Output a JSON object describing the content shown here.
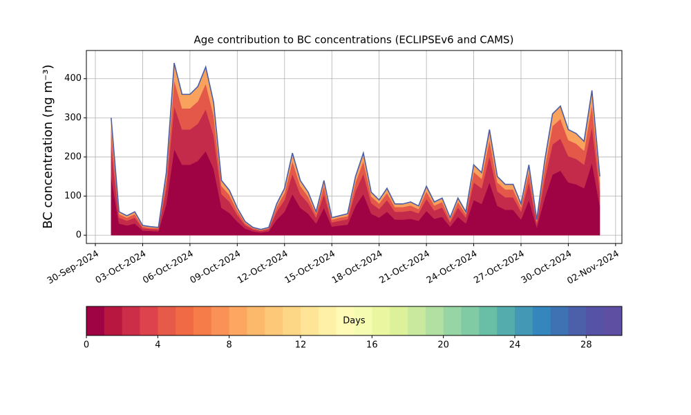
{
  "chart_data": {
    "type": "stacked_area",
    "title": "Age contribution to BC concentrations (ECLIPSEv6 and CAMS)",
    "y_label": "BC concentration (ng m⁻³)",
    "x": [
      1,
      1.5,
      2,
      2.5,
      3,
      3.5,
      4,
      4.5,
      5,
      5.5,
      6,
      6.5,
      7,
      7.5,
      8,
      8.5,
      9,
      9.5,
      10,
      10.5,
      11,
      11.5,
      12,
      12.5,
      13,
      13.5,
      14,
      14.5,
      15,
      15.5,
      16,
      16.5,
      17,
      17.5,
      18,
      18.5,
      19,
      19.5,
      20,
      20.5,
      21,
      21.5,
      22,
      22.5,
      23,
      23.5,
      24,
      24.5,
      25,
      25.5,
      26,
      26.5,
      27,
      27.5,
      28,
      28.5,
      29,
      29.5,
      30,
      30.5,
      31,
      31.5,
      32
    ],
    "series": [
      {
        "color": "#a00343",
        "values": [
          150,
          30,
          25,
          30,
          12,
          11,
          10,
          80,
          220,
          180,
          180,
          190,
          215,
          170,
          70,
          57,
          35,
          17,
          10,
          7,
          10,
          40,
          60,
          105,
          70,
          55,
          30,
          70,
          22,
          25,
          27,
          75,
          105,
          55,
          45,
          60,
          40,
          40,
          42,
          37,
          62,
          42,
          47,
          22,
          47,
          30,
          90,
          80,
          135,
          75,
          65,
          65,
          40,
          90,
          20,
          95,
          155,
          165,
          135,
          130,
          120,
          185,
          75
        ]
      },
      {
        "color": "#c42a4a",
        "values": [
          75,
          15,
          12,
          15,
          6,
          5,
          5,
          40,
          110,
          90,
          90,
          95,
          107,
          85,
          35,
          29,
          17,
          9,
          5,
          4,
          5,
          20,
          30,
          52,
          35,
          27,
          15,
          35,
          11,
          12,
          14,
          37,
          52,
          27,
          22,
          30,
          20,
          20,
          21,
          19,
          31,
          21,
          24,
          11,
          24,
          15,
          45,
          40,
          67,
          37,
          32,
          32,
          20,
          45,
          10,
          47,
          77,
          82,
          67,
          65,
          60,
          92,
          37
        ]
      },
      {
        "color": "#e4584a",
        "values": [
          45,
          9,
          8,
          9,
          4,
          3,
          3,
          24,
          66,
          54,
          54,
          57,
          65,
          51,
          21,
          17,
          11,
          5,
          3,
          2,
          3,
          12,
          18,
          32,
          21,
          17,
          9,
          21,
          7,
          8,
          8,
          23,
          32,
          17,
          14,
          18,
          12,
          12,
          13,
          11,
          19,
          13,
          14,
          7,
          14,
          9,
          27,
          24,
          41,
          23,
          20,
          20,
          12,
          27,
          6,
          29,
          47,
          50,
          41,
          39,
          36,
          56,
          23
        ]
      },
      {
        "color": "#f9a25e",
        "values": [
          30,
          6,
          5,
          6,
          3,
          3,
          2,
          16,
          44,
          36,
          36,
          38,
          43,
          34,
          14,
          12,
          7,
          4,
          2,
          2,
          2,
          8,
          12,
          21,
          14,
          11,
          6,
          14,
          5,
          5,
          6,
          15,
          21,
          11,
          9,
          12,
          8,
          8,
          9,
          8,
          13,
          9,
          10,
          5,
          10,
          6,
          18,
          16,
          27,
          15,
          13,
          13,
          8,
          18,
          4,
          19,
          31,
          33,
          27,
          26,
          24,
          37,
          15
        ]
      }
    ],
    "outline_color": "#4a5ea8",
    "xlim": [
      -0.57,
      33.4
    ],
    "xticks": [
      {
        "value": 0,
        "label": "30-Sep-2024"
      },
      {
        "value": 3,
        "label": "03-Oct-2024"
      },
      {
        "value": 6,
        "label": "06-Oct-2024"
      },
      {
        "value": 9,
        "label": "09-Oct-2024"
      },
      {
        "value": 12,
        "label": "12-Oct-2024"
      },
      {
        "value": 15,
        "label": "15-Oct-2024"
      },
      {
        "value": 18,
        "label": "18-Oct-2024"
      },
      {
        "value": 21,
        "label": "21-Oct-2024"
      },
      {
        "value": 24,
        "label": "24-Oct-2024"
      },
      {
        "value": 27,
        "label": "27-Oct-2024"
      },
      {
        "value": 30,
        "label": "30-Oct-2024"
      },
      {
        "value": 33,
        "label": "02-Nov-2024"
      }
    ],
    "ylim": [
      -21,
      472
    ],
    "yticks": [
      0,
      100,
      200,
      300,
      400
    ],
    "grid": true,
    "colorbar": {
      "label": "Days",
      "lim": [
        0,
        30
      ],
      "ticks": [
        0,
        4,
        8,
        12,
        16,
        20,
        24,
        28
      ],
      "colors": [
        "#a00343",
        "#b8183f",
        "#cc2e4a",
        "#dc434c",
        "#e65a49",
        "#ef6a45",
        "#f67d4a",
        "#fa9156",
        "#fca661",
        "#fdb96b",
        "#fdc877",
        "#fed786",
        "#fee496",
        "#fff0a8",
        "#fffbb7",
        "#f6fbb2",
        "#eaf7a0",
        "#dcf19a",
        "#c9ea9e",
        "#b2e0a2",
        "#98d5a4",
        "#80cba4",
        "#68bfa6",
        "#54adac",
        "#4398b6",
        "#3686be",
        "#3e72b3",
        "#4c5fa9",
        "#5652a5",
        "#5e4fa2"
      ]
    }
  }
}
